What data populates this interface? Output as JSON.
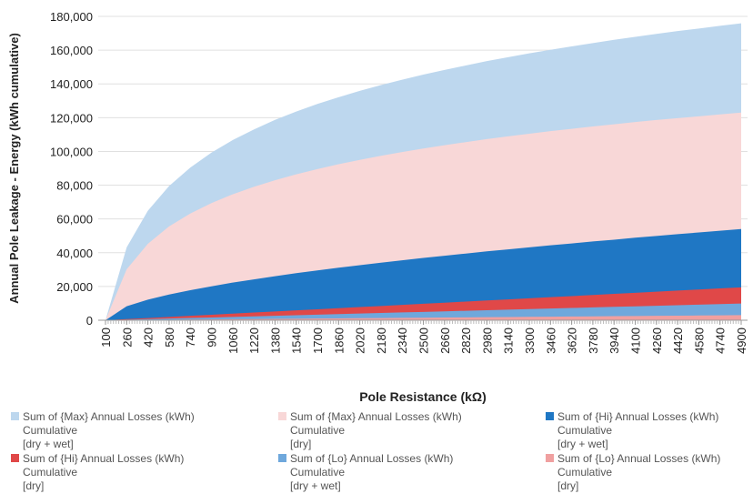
{
  "chart_data": {
    "type": "area",
    "x_label": "Pole Resistance (kΩ)",
    "y_label": "Annual Pole Leakage - Energy (kWh cumulative)",
    "categories": [
      100,
      260,
      420,
      580,
      740,
      900,
      1060,
      1220,
      1380,
      1540,
      1700,
      1860,
      2020,
      2180,
      2340,
      2500,
      2660,
      2820,
      2980,
      3140,
      3300,
      3460,
      3620,
      3780,
      3940,
      4100,
      4260,
      4420,
      4580,
      4740,
      4900
    ],
    "series": [
      {
        "name": "Sum of {Max} Annual Losses (kWh)\nCumulative\n[dry + wet]",
        "color": "#bdd7ee",
        "values": [
          0,
          43200,
          64900,
          79500,
          90400,
          99300,
          106700,
          113000,
          118700,
          123600,
          128100,
          132100,
          135900,
          139300,
          142500,
          145500,
          148300,
          150900,
          153500,
          155800,
          158100,
          160200,
          162200,
          164200,
          166100,
          167900,
          169600,
          171300,
          172800,
          174400,
          175900
        ]
      },
      {
        "name": "Sum of {Max} Annual Losses (kWh)\nCumulative\n[dry]",
        "color": "#f8d7d7",
        "values": [
          0,
          30200,
          45300,
          55600,
          63200,
          69400,
          74600,
          79000,
          82900,
          86400,
          89500,
          92400,
          95000,
          97400,
          99600,
          101700,
          103700,
          105500,
          107300,
          108900,
          110500,
          112000,
          113400,
          114800,
          116100,
          117400,
          118600,
          119700,
          120800,
          121900,
          123000
        ]
      },
      {
        "name": "Sum of {Hi} Annual Losses (kWh)\nCumulative\n[dry + wet]",
        "color": "#1f77c4",
        "values": [
          0,
          8300,
          12200,
          15200,
          17800,
          20100,
          22300,
          24200,
          26100,
          27900,
          29500,
          31100,
          32600,
          34100,
          35500,
          36900,
          38200,
          39500,
          40800,
          42000,
          43200,
          44400,
          45500,
          46700,
          47700,
          48900,
          49900,
          51000,
          52000,
          53000,
          54000
        ]
      },
      {
        "name": "Sum of {Hi} Annual Losses (kWh)\nCumulative\n[dry]",
        "color": "#e04848",
        "values": [
          0,
          650,
          1300,
          1950,
          2600,
          3250,
          3900,
          4550,
          5200,
          5850,
          6500,
          7150,
          7800,
          8450,
          9100,
          9750,
          10400,
          11050,
          11700,
          12350,
          13000,
          13650,
          14300,
          14950,
          15600,
          16250,
          16900,
          17550,
          18200,
          18850,
          19500
        ]
      },
      {
        "name": "Sum of {Lo} Annual Losses (kWh)\nCumulative\n[dry + wet]",
        "color": "#6fa8dc",
        "values": [
          0,
          330,
          660,
          990,
          1320,
          1650,
          1980,
          2310,
          2640,
          2970,
          3300,
          3630,
          3960,
          4290,
          4620,
          4950,
          5280,
          5610,
          5940,
          6270,
          6600,
          6930,
          7260,
          7590,
          7920,
          8250,
          8580,
          8910,
          9240,
          9570,
          9900
        ]
      },
      {
        "name": "Sum of {Lo} Annual Losses (kWh)\nCumulative\n[dry]",
        "color": "#f0a0a0",
        "values": [
          0,
          100,
          200,
          300,
          400,
          500,
          600,
          700,
          800,
          900,
          1000,
          1100,
          1200,
          1300,
          1400,
          1500,
          1600,
          1700,
          1800,
          1900,
          2000,
          2100,
          2200,
          2300,
          2400,
          2500,
          2600,
          2700,
          2800,
          2900,
          3000
        ]
      }
    ],
    "ylim": [
      0,
      180000
    ],
    "yticks": [
      0,
      {
        "value": 20000,
        "label": "20,000"
      },
      {
        "value": 40000,
        "label": "40,000"
      },
      {
        "value": 60000,
        "label": "60,000"
      },
      {
        "value": 80000,
        "label": "80,000"
      },
      {
        "value": 100000,
        "label": "100,000"
      },
      {
        "value": 120000,
        "label": "120,000"
      },
      {
        "value": 140000,
        "label": "140,000"
      },
      {
        "value": 160000,
        "label": "160,000"
      },
      {
        "value": 180000,
        "label": "180,000"
      }
    ],
    "grid": true,
    "legend": "bottom"
  }
}
